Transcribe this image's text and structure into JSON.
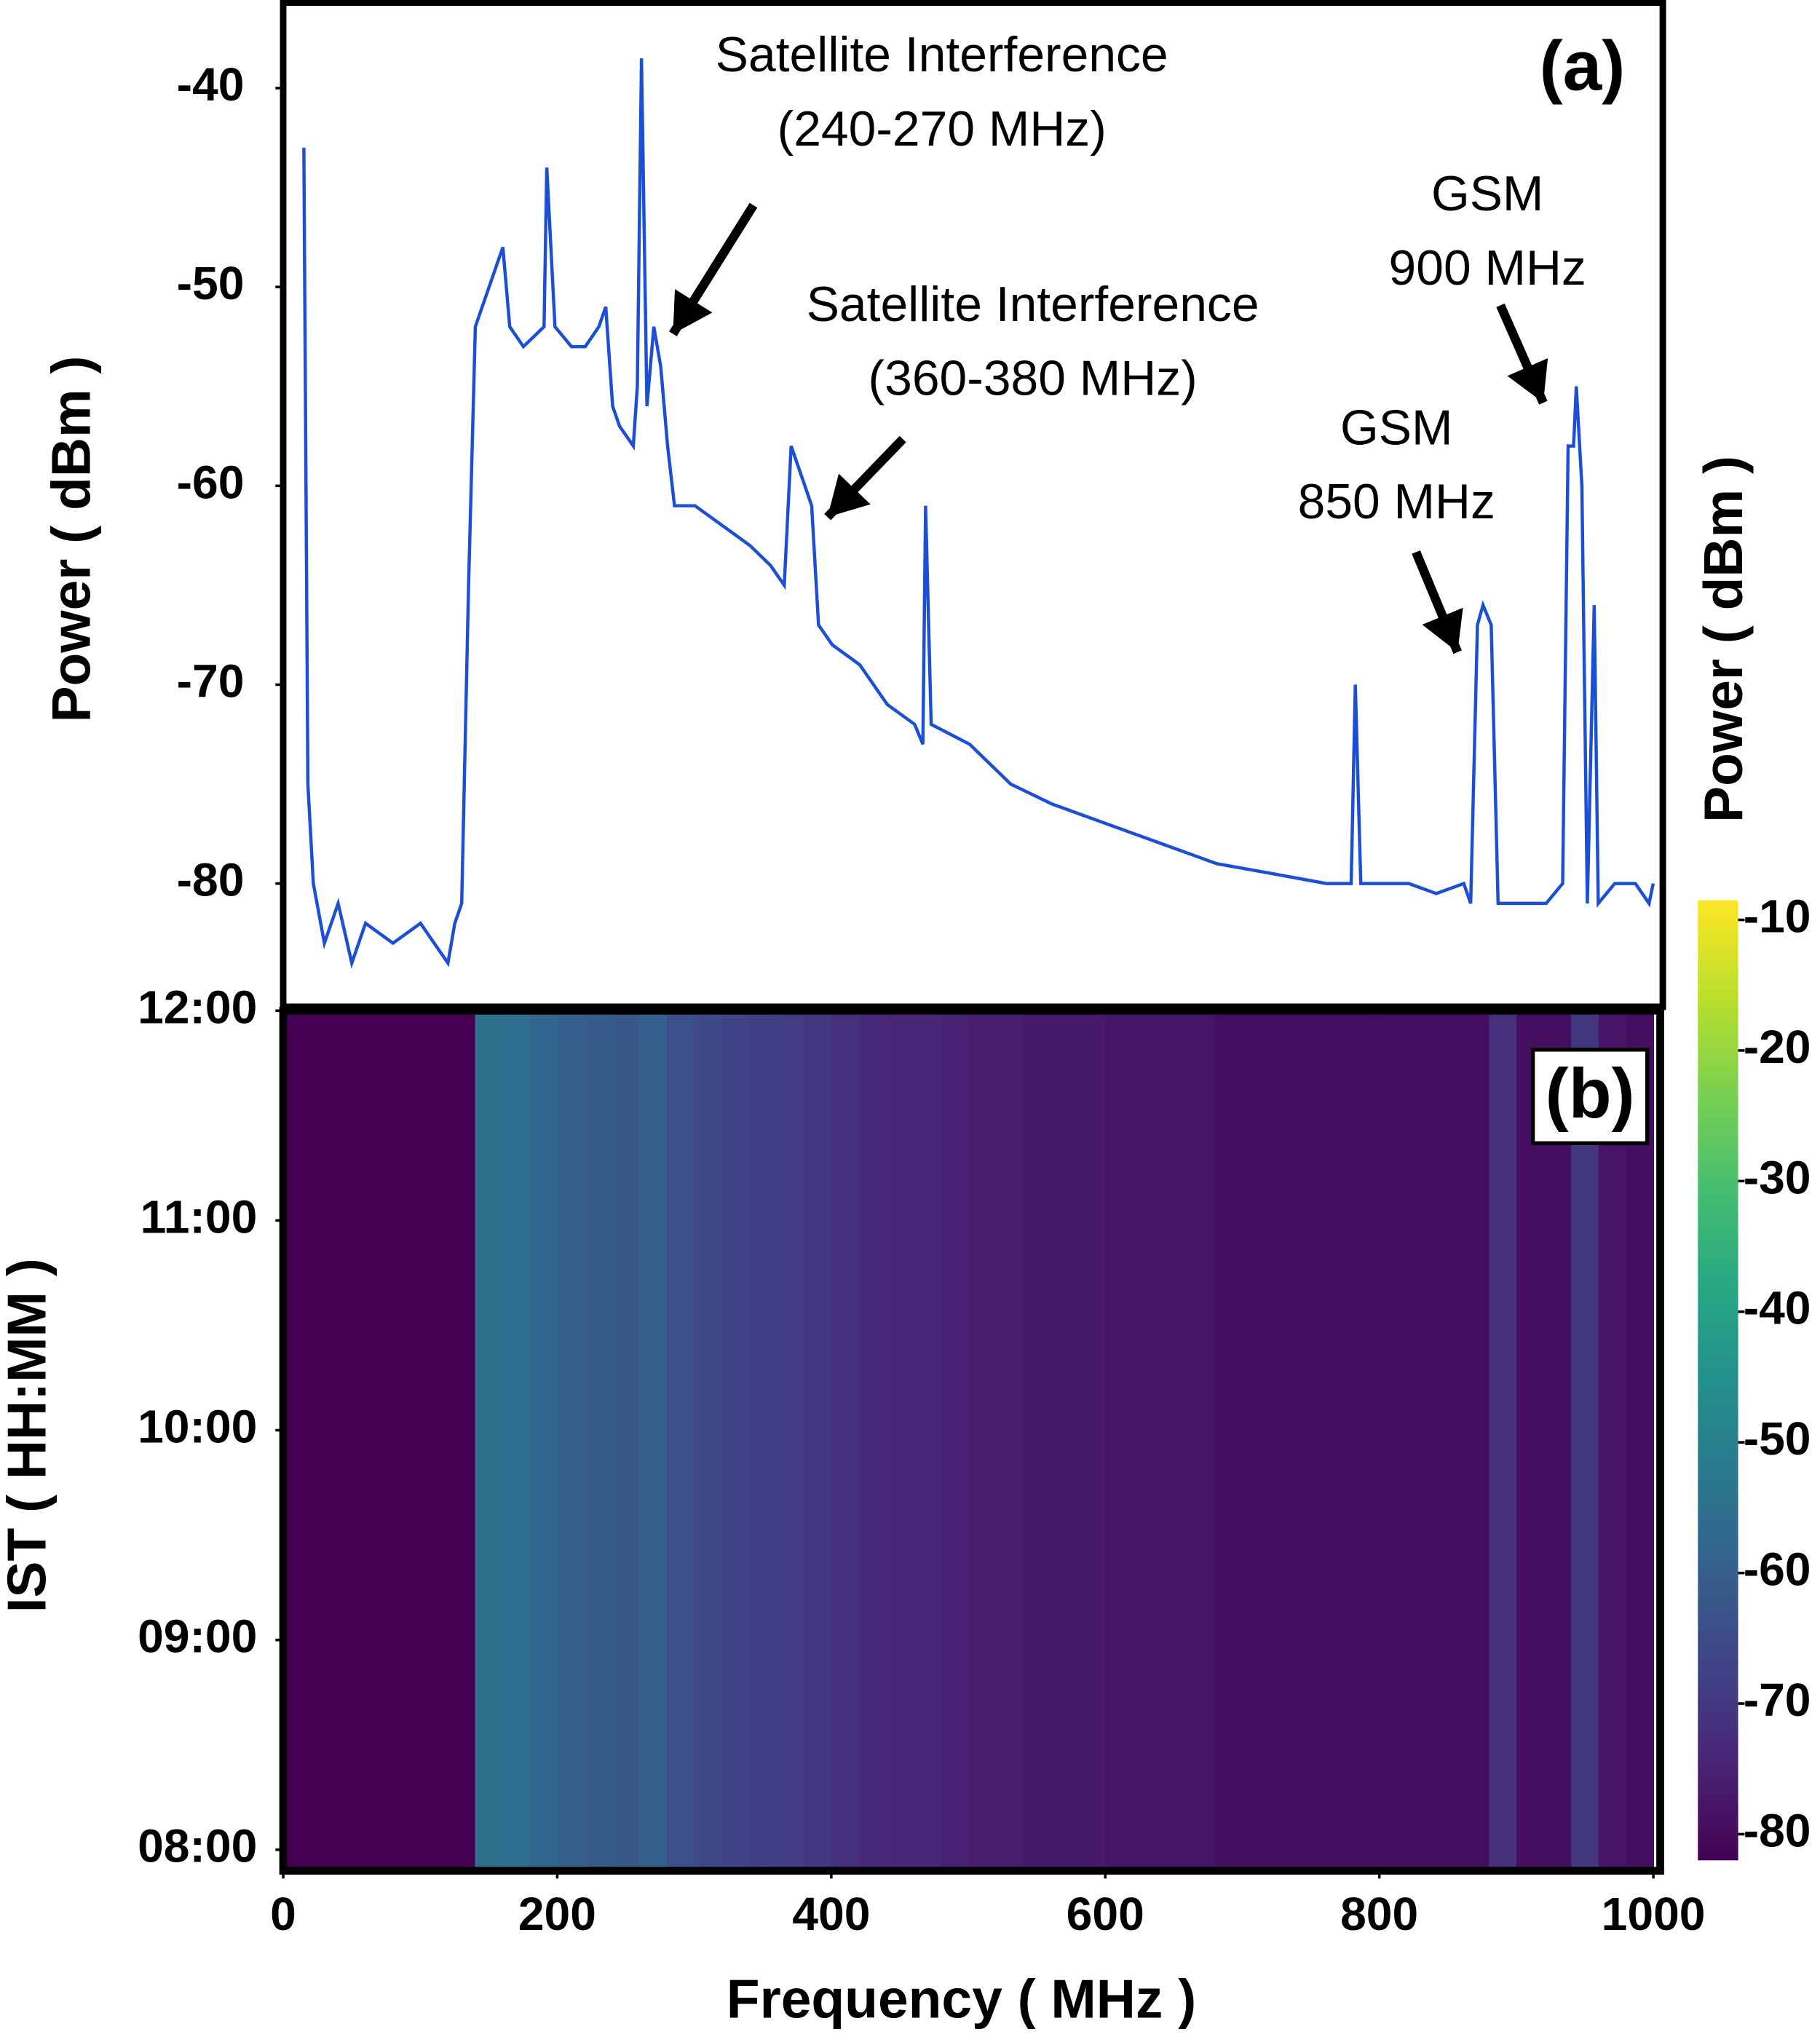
{
  "chart_data": [
    {
      "type": "line",
      "title": "(a)",
      "ylabel": "Power ( dBm )",
      "color": "#1a4fd6",
      "xlim": [
        0,
        1005
      ],
      "ylim": [
        -86.2,
        -35.7
      ],
      "yticks": [
        -40,
        -50,
        -60,
        -70,
        -80
      ],
      "x": [
        15,
        18,
        22,
        30,
        40,
        50,
        60,
        80,
        100,
        110,
        120,
        125,
        130,
        135,
        140,
        150,
        160,
        165,
        175,
        190,
        192,
        198,
        210,
        220,
        230,
        235,
        240,
        245,
        255,
        258,
        261,
        265,
        270,
        275,
        280,
        285,
        300,
        320,
        340,
        355,
        365,
        370,
        375,
        380,
        385,
        390,
        400,
        420,
        440,
        460,
        466,
        468,
        472,
        500,
        530,
        560,
        600,
        640,
        680,
        720,
        760,
        778,
        781,
        785,
        820,
        840,
        860,
        865,
        870,
        874,
        880,
        885,
        900,
        920,
        932,
        936,
        940,
        942,
        946,
        950,
        955,
        958,
        970,
        985,
        995,
        998
      ],
      "values": [
        -43,
        -75,
        -80,
        -83,
        -81,
        -84,
        -82,
        -83,
        -82,
        -83,
        -84,
        -82,
        -81,
        -65,
        -52,
        -50,
        -48,
        -52,
        -53,
        -52,
        -44,
        -52,
        -53,
        -53,
        -52,
        -51,
        -56,
        -57,
        -58,
        -55,
        -38.5,
        -56,
        -52,
        -54,
        -58,
        -61,
        -61,
        -62,
        -63,
        -64,
        -65,
        -58,
        -59,
        -60,
        -61,
        -67,
        -68,
        -69,
        -71,
        -72,
        -73,
        -61,
        -72,
        -73,
        -75,
        -76,
        -77,
        -78,
        -79,
        -79.5,
        -80,
        -80,
        -70,
        -80,
        -80,
        -80.5,
        -80,
        -81,
        -67,
        -66,
        -67,
        -81,
        -81,
        -81,
        -80,
        -58,
        -58,
        -55,
        -60,
        -81,
        -66,
        -81,
        -80,
        -80,
        -81,
        -80
      ],
      "annotations": [
        [
          "Satellite Interference",
          "(240-270 MHz)"
        ],
        [
          "Satellite Interference",
          "(360-380 MHz)"
        ],
        [
          "GSM",
          "900 MHz"
        ],
        [
          "GSM",
          "850 MHz"
        ]
      ]
    },
    {
      "type": "heatmap",
      "title": "(b)",
      "xlabel": "Frequency ( MHz )",
      "ylabel": "IST ( HH:MM )",
      "colorbar_label": "Power  ( dBm )",
      "colormap": "viridis",
      "xlim": [
        0,
        1005
      ],
      "xticks": [
        0,
        200,
        400,
        600,
        800,
        1000
      ],
      "ylim": [
        7.9,
        12
      ],
      "yticks": [
        {
          "value": 8,
          "label": "08:00"
        },
        {
          "value": 9,
          "label": "09:00"
        },
        {
          "value": 10,
          "label": "10:00"
        },
        {
          "value": 11,
          "label": "11:00"
        },
        {
          "value": 12,
          "label": "12:00"
        }
      ],
      "clim": [
        -82,
        -8.5
      ],
      "cticks": [
        -10,
        -20,
        -30,
        -40,
        -50,
        -60,
        -70,
        -80
      ],
      "xbins": [
        0,
        20,
        40,
        60,
        80,
        100,
        120,
        140,
        160,
        180,
        200,
        220,
        240,
        260,
        280,
        300,
        320,
        340,
        360,
        380,
        400,
        420,
        440,
        460,
        480,
        500,
        520,
        540,
        560,
        580,
        600,
        620,
        640,
        660,
        680,
        700,
        720,
        740,
        760,
        780,
        800,
        820,
        840,
        860,
        880,
        900,
        920,
        940,
        960,
        980,
        1000
      ],
      "values": [
        -82,
        -82,
        -82,
        -82,
        -82,
        -82,
        -82,
        -55,
        -56,
        -58,
        -60,
        -61,
        -62,
        -60,
        -64,
        -66,
        -67,
        -68,
        -69,
        -70,
        -72,
        -73,
        -74,
        -74,
        -75,
        -76,
        -76,
        -77,
        -77,
        -77,
        -78,
        -78,
        -78,
        -78,
        -79,
        -79,
        -79,
        -79,
        -79,
        -79,
        -79,
        -79,
        -79,
        -79,
        -72,
        -79,
        -79,
        -70,
        -78,
        -79
      ]
    }
  ]
}
